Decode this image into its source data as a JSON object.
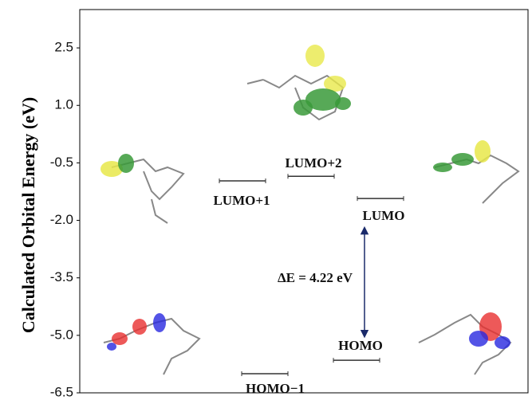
{
  "chart_data": {
    "type": "energy-levels",
    "y_label": "Calculated Orbital Energy (eV)",
    "ylim": [
      -6.5,
      3.5
    ],
    "yticks": [
      2.5,
      {
        "value": 1,
        "label": "1.0"
      },
      -0.5,
      {
        "value": -2,
        "label": "-2.0"
      },
      -3.5,
      {
        "value": -5,
        "label": "-5.0"
      },
      -6.5
    ],
    "categories": [
      "LUMO+1",
      "LUMO+2",
      "LUMO",
      "HOMO",
      "HOMO−1"
    ],
    "values": [
      -0.97,
      -0.85,
      -1.43,
      -5.65,
      -6.0
    ],
    "color": "#333333",
    "annotation": "ΔE = 4.22 eV"
  }
}
